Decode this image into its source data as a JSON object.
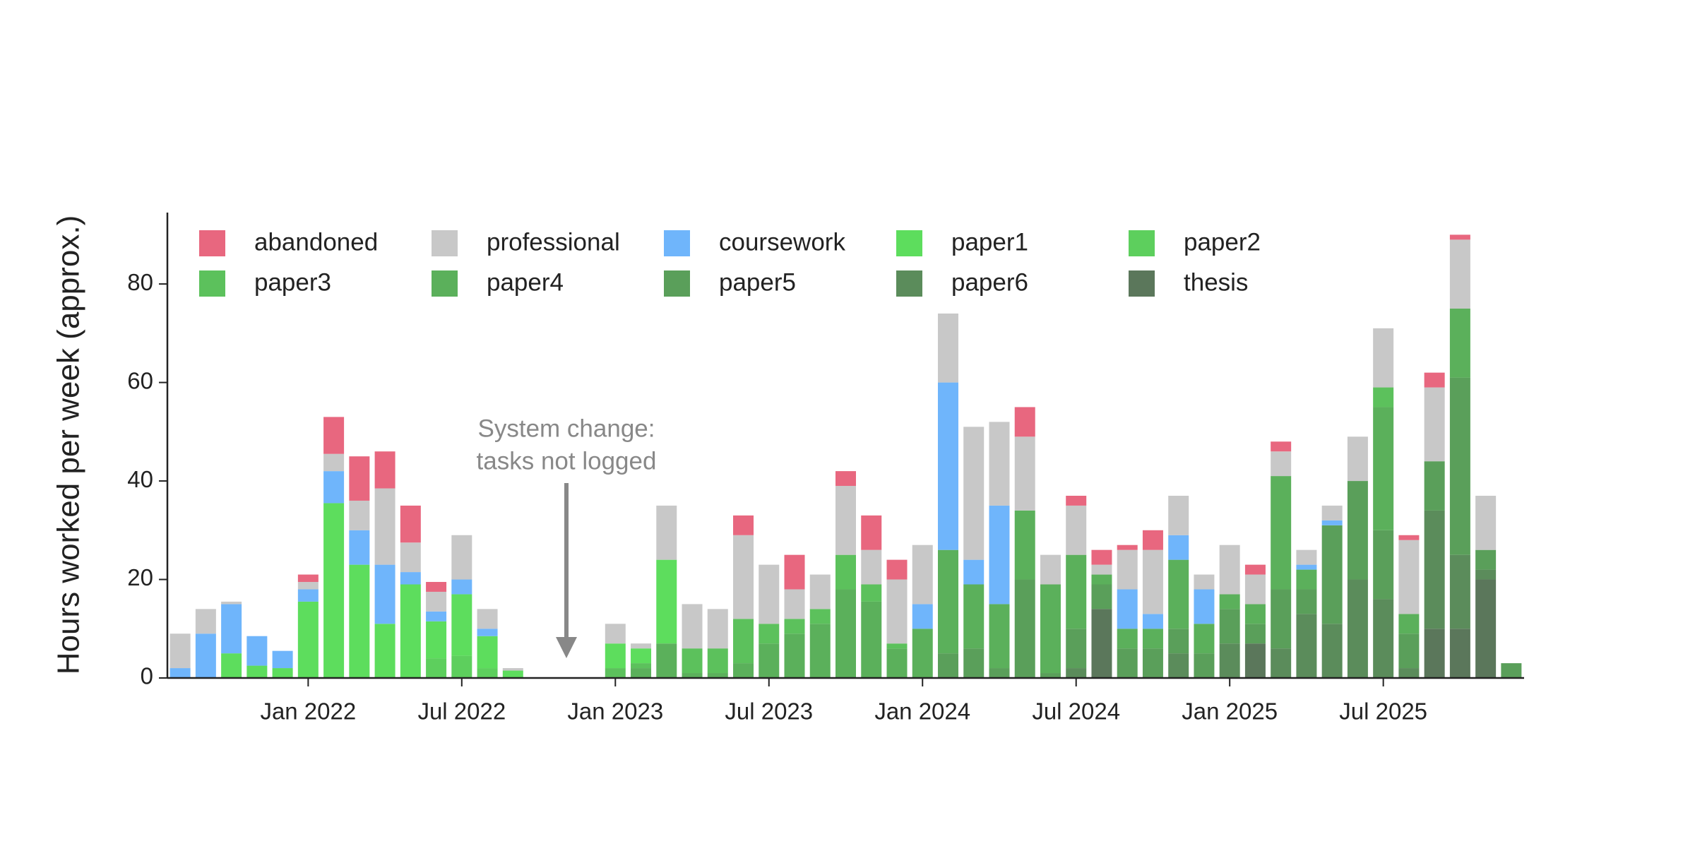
{
  "chart_data": {
    "type": "bar",
    "stacked": true,
    "ylabel": "Hours worked per week (approx.)",
    "ylim": [
      0,
      94.5
    ],
    "yticks": [
      0,
      20,
      40,
      60,
      80
    ],
    "xlim": [
      "2021-08",
      "2025-12"
    ],
    "xticks": [
      {
        "value": "2022-01",
        "label": "Jan 2022"
      },
      {
        "value": "2022-07",
        "label": "Jul 2022"
      },
      {
        "value": "2023-01",
        "label": "Jan 2023"
      },
      {
        "value": "2023-07",
        "label": "Jul 2023"
      },
      {
        "value": "2024-01",
        "label": "Jan 2024"
      },
      {
        "value": "2024-07",
        "label": "Jul 2024"
      },
      {
        "value": "2025-01",
        "label": "Jan 2025"
      },
      {
        "value": "2025-07",
        "label": "Jul 2025"
      }
    ],
    "grid": false,
    "legend": {
      "loc": "upper left",
      "ncol": 5
    },
    "annotation": {
      "lines": [
        "System change:",
        "tasks not logged"
      ],
      "color": "#888888"
    },
    "x": [
      "2021-08",
      "2021-09",
      "2021-10",
      "2021-11",
      "2021-12",
      "2022-01",
      "2022-02",
      "2022-03",
      "2022-04",
      "2022-05",
      "2022-06",
      "2022-07",
      "2022-08",
      "2022-09",
      "2023-01",
      "2023-02",
      "2023-03",
      "2023-04",
      "2023-05",
      "2023-06",
      "2023-07",
      "2023-08",
      "2023-09",
      "2023-10",
      "2023-11",
      "2023-12",
      "2024-01",
      "2024-02",
      "2024-03",
      "2024-04",
      "2024-05",
      "2024-06",
      "2024-07",
      "2024-08",
      "2024-09",
      "2024-10",
      "2024-11",
      "2024-12",
      "2025-01",
      "2025-02",
      "2025-03",
      "2025-04",
      "2025-05",
      "2025-06",
      "2025-07",
      "2025-08",
      "2025-09",
      "2025-10",
      "2025-11",
      "2025-12"
    ],
    "series": [
      {
        "name": "abandoned",
        "color": "#e8677f",
        "values": [
          0,
          0,
          0,
          0,
          0,
          1.5,
          7.5,
          9,
          7.5,
          7.5,
          2,
          0,
          0,
          0,
          0,
          0,
          0,
          0,
          0,
          4,
          0,
          7,
          0,
          3,
          7,
          4,
          0,
          0,
          0,
          0,
          6,
          0,
          2,
          3,
          1,
          4,
          0,
          0,
          0,
          2,
          2,
          0,
          0,
          0,
          0,
          1,
          3,
          1,
          0,
          0
        ]
      },
      {
        "name": "professional",
        "color": "#c8c8c8",
        "values": [
          7,
          5,
          0.5,
          0,
          0,
          1.5,
          3.5,
          6,
          15.5,
          6,
          4,
          9,
          4,
          0.5,
          4,
          1,
          11,
          9,
          8,
          17,
          12,
          6,
          7,
          14,
          7,
          13,
          12,
          14,
          27,
          17,
          15,
          6,
          10,
          2,
          8,
          13,
          8,
          3,
          10,
          6,
          5,
          3,
          3,
          9,
          12,
          15,
          15,
          14,
          11,
          0
        ]
      },
      {
        "name": "coursework",
        "color": "#6fb5fb",
        "values": [
          2,
          9,
          10,
          6,
          3.5,
          2.5,
          6.5,
          7,
          12,
          2.5,
          2,
          3,
          1.5,
          0,
          0,
          0,
          0,
          0,
          0,
          0,
          0,
          0,
          0,
          0,
          0,
          0,
          5,
          34,
          5,
          20,
          0,
          0,
          0,
          0,
          8,
          3,
          5,
          7,
          0,
          0,
          0,
          1,
          1,
          0,
          0,
          0,
          0,
          0,
          0,
          0
        ]
      },
      {
        "name": "paper1",
        "color": "#5ddd5d",
        "values": [
          0,
          0,
          5,
          2.5,
          2,
          15.5,
          35.5,
          23,
          11,
          19,
          7.5,
          12.5,
          6.5,
          1.5,
          5,
          3,
          17,
          0,
          0,
          0,
          0,
          0,
          0,
          0,
          0,
          0,
          0,
          0,
          0,
          0,
          0,
          0,
          0,
          0,
          0,
          0,
          0,
          0,
          0,
          0,
          0,
          0,
          0,
          0,
          0,
          0,
          0,
          0,
          0,
          0
        ]
      },
      {
        "name": "paper2",
        "color": "#5dcf5d",
        "values": [
          0,
          0,
          0,
          0,
          0,
          0,
          0,
          0,
          0,
          0,
          4,
          4.5,
          2,
          0,
          0,
          0,
          0,
          0,
          0,
          0,
          0,
          0,
          0,
          0,
          0,
          0,
          0,
          0,
          0,
          0,
          0,
          0,
          0,
          0,
          0,
          0,
          0,
          0,
          0,
          0,
          0,
          0,
          0,
          0,
          0,
          0,
          0,
          0,
          0,
          0
        ]
      },
      {
        "name": "paper3",
        "color": "#5cc15c",
        "values": [
          0,
          0,
          0,
          0,
          0,
          0,
          0,
          0,
          0,
          0,
          0,
          0,
          0,
          0,
          2,
          1,
          0,
          5,
          5,
          9,
          4,
          3,
          3,
          7,
          3.5,
          1,
          0,
          0,
          0,
          0,
          0,
          0,
          0,
          0,
          0,
          0,
          0,
          0,
          0,
          0,
          0,
          0,
          0,
          0,
          4,
          0,
          0,
          0,
          0,
          0
        ]
      },
      {
        "name": "paper4",
        "color": "#5bb05b",
        "values": [
          0,
          0,
          0,
          0,
          0,
          0,
          0,
          0,
          0,
          0,
          0,
          0,
          0,
          0,
          0,
          2,
          7,
          1,
          1,
          3,
          7,
          9,
          11,
          18,
          15.5,
          6,
          10,
          21,
          13,
          13,
          14,
          18,
          15,
          2,
          4,
          4,
          14,
          6,
          3,
          4,
          23,
          4,
          0,
          0,
          25,
          4,
          0,
          14,
          0,
          0
        ]
      },
      {
        "name": "paper5",
        "color": "#5a9f5a",
        "values": [
          0,
          0,
          0,
          0,
          0,
          0,
          0,
          0,
          0,
          0,
          0,
          0,
          0,
          0,
          0,
          0,
          0,
          0,
          0,
          0,
          0,
          0,
          0,
          0,
          0,
          0,
          0,
          5,
          6,
          2,
          20,
          1,
          8,
          5,
          6,
          6,
          5,
          5,
          7,
          4,
          12,
          5,
          20,
          20,
          14,
          7,
          10,
          36,
          4,
          3
        ]
      },
      {
        "name": "paper6",
        "color": "#5b8c5b",
        "values": [
          0,
          0,
          0,
          0,
          0,
          0,
          0,
          0,
          0,
          0,
          0,
          0,
          0,
          0,
          0,
          0,
          0,
          0,
          0,
          0,
          0,
          0,
          0,
          0,
          0,
          0,
          0,
          0,
          0,
          0,
          0,
          0,
          2,
          0,
          0,
          0,
          5,
          0,
          7,
          0,
          6,
          13,
          11,
          20,
          16,
          2,
          24,
          15,
          2,
          0
        ]
      },
      {
        "name": "thesis",
        "color": "#5b775b",
        "values": [
          0,
          0,
          0,
          0,
          0,
          0,
          0,
          0,
          0,
          0,
          0,
          0,
          0,
          0,
          0,
          0,
          0,
          0,
          0,
          0,
          0,
          0,
          0,
          0,
          0,
          0,
          0,
          0,
          0,
          0,
          0,
          0,
          0,
          14,
          0,
          0,
          0,
          0,
          0,
          7,
          0,
          0,
          0,
          0,
          0,
          0,
          10,
          10,
          20,
          0
        ]
      }
    ]
  }
}
